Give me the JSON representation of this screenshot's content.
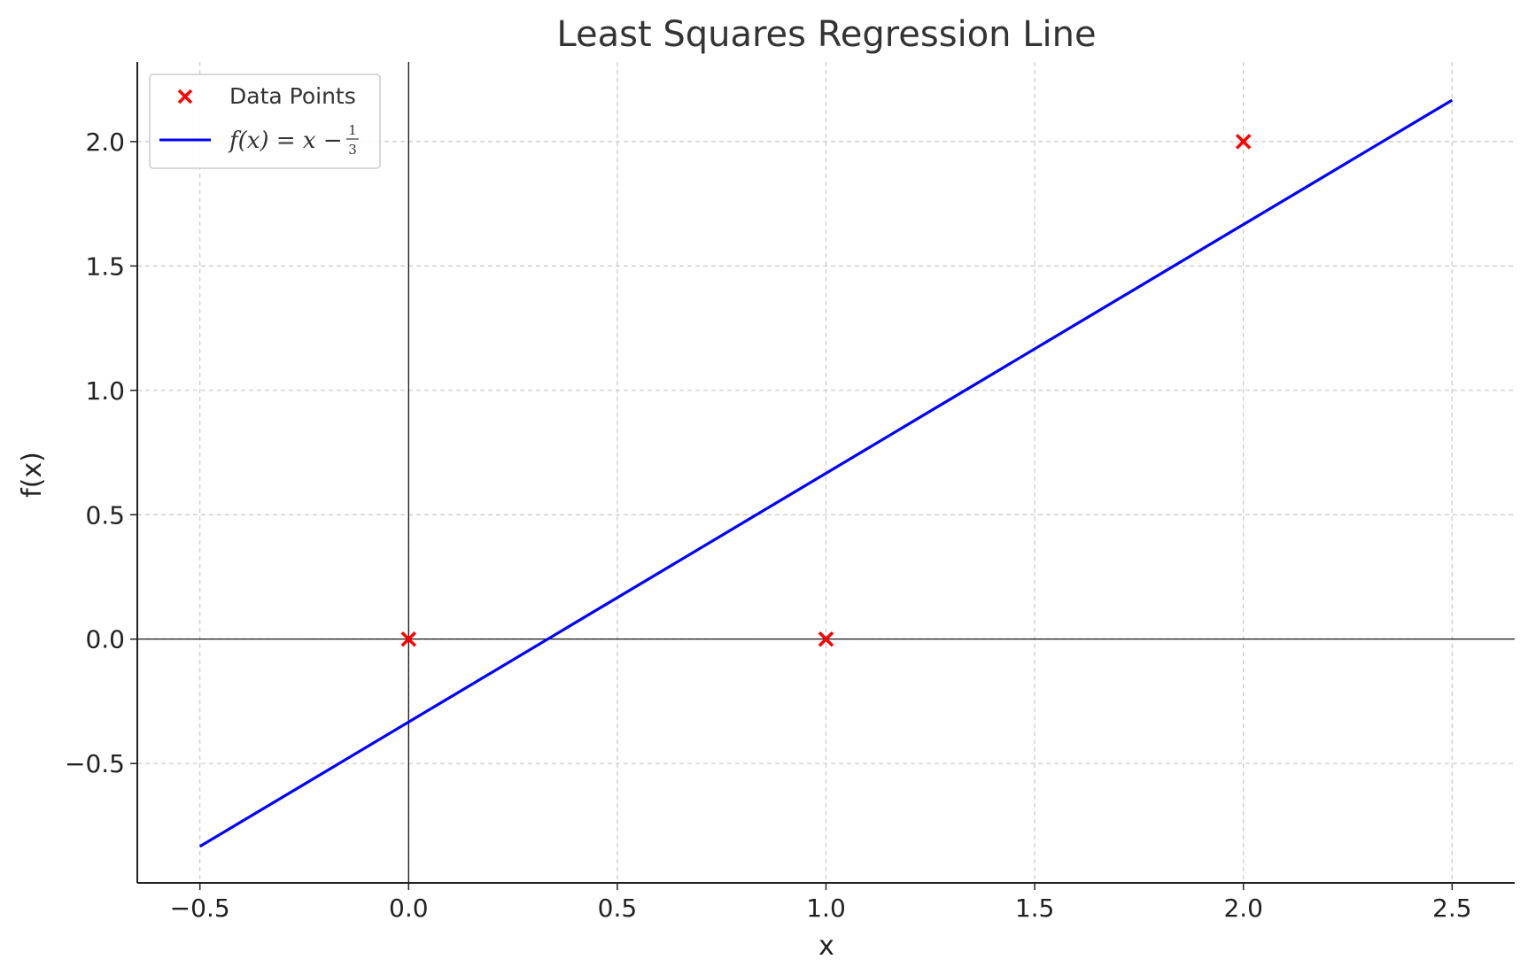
{
  "chart_data": {
    "type": "scatter",
    "title": "Least Squares Regression Line",
    "xlabel": "x",
    "ylabel": "f(x)",
    "xlim": [
      -0.65,
      2.65
    ],
    "ylim": [
      -0.98,
      2.32
    ],
    "x_ticks": [
      -0.5,
      0.0,
      0.5,
      1.0,
      1.5,
      2.0,
      2.5
    ],
    "x_tick_labels": [
      "−0.5",
      "0.0",
      "0.5",
      "1.0",
      "1.5",
      "2.0",
      "2.5"
    ],
    "y_ticks": [
      -0.5,
      0.0,
      0.5,
      1.0,
      1.5,
      2.0
    ],
    "y_tick_labels": [
      "−0.5",
      "0.0",
      "0.5",
      "1.0",
      "1.5",
      "2.0"
    ],
    "grid": true,
    "legend_position": "top-left",
    "series": [
      {
        "name": "Data Points",
        "kind": "scatter",
        "marker": "x",
        "color": "#ff0000",
        "points": [
          {
            "x": 0,
            "y": 0
          },
          {
            "x": 1,
            "y": 0
          },
          {
            "x": 2,
            "y": 2
          }
        ]
      },
      {
        "name": "f(x) = x − 1/3",
        "kind": "line",
        "color": "#0000ff",
        "x": [
          -0.5,
          2.5
        ],
        "y": [
          -0.8333,
          2.1667
        ]
      }
    ],
    "legend": {
      "scatter_label": "Data Points",
      "line_label_prefix": "f(x) = x −",
      "line_label_numerator": "1",
      "line_label_denominator": "3"
    }
  }
}
